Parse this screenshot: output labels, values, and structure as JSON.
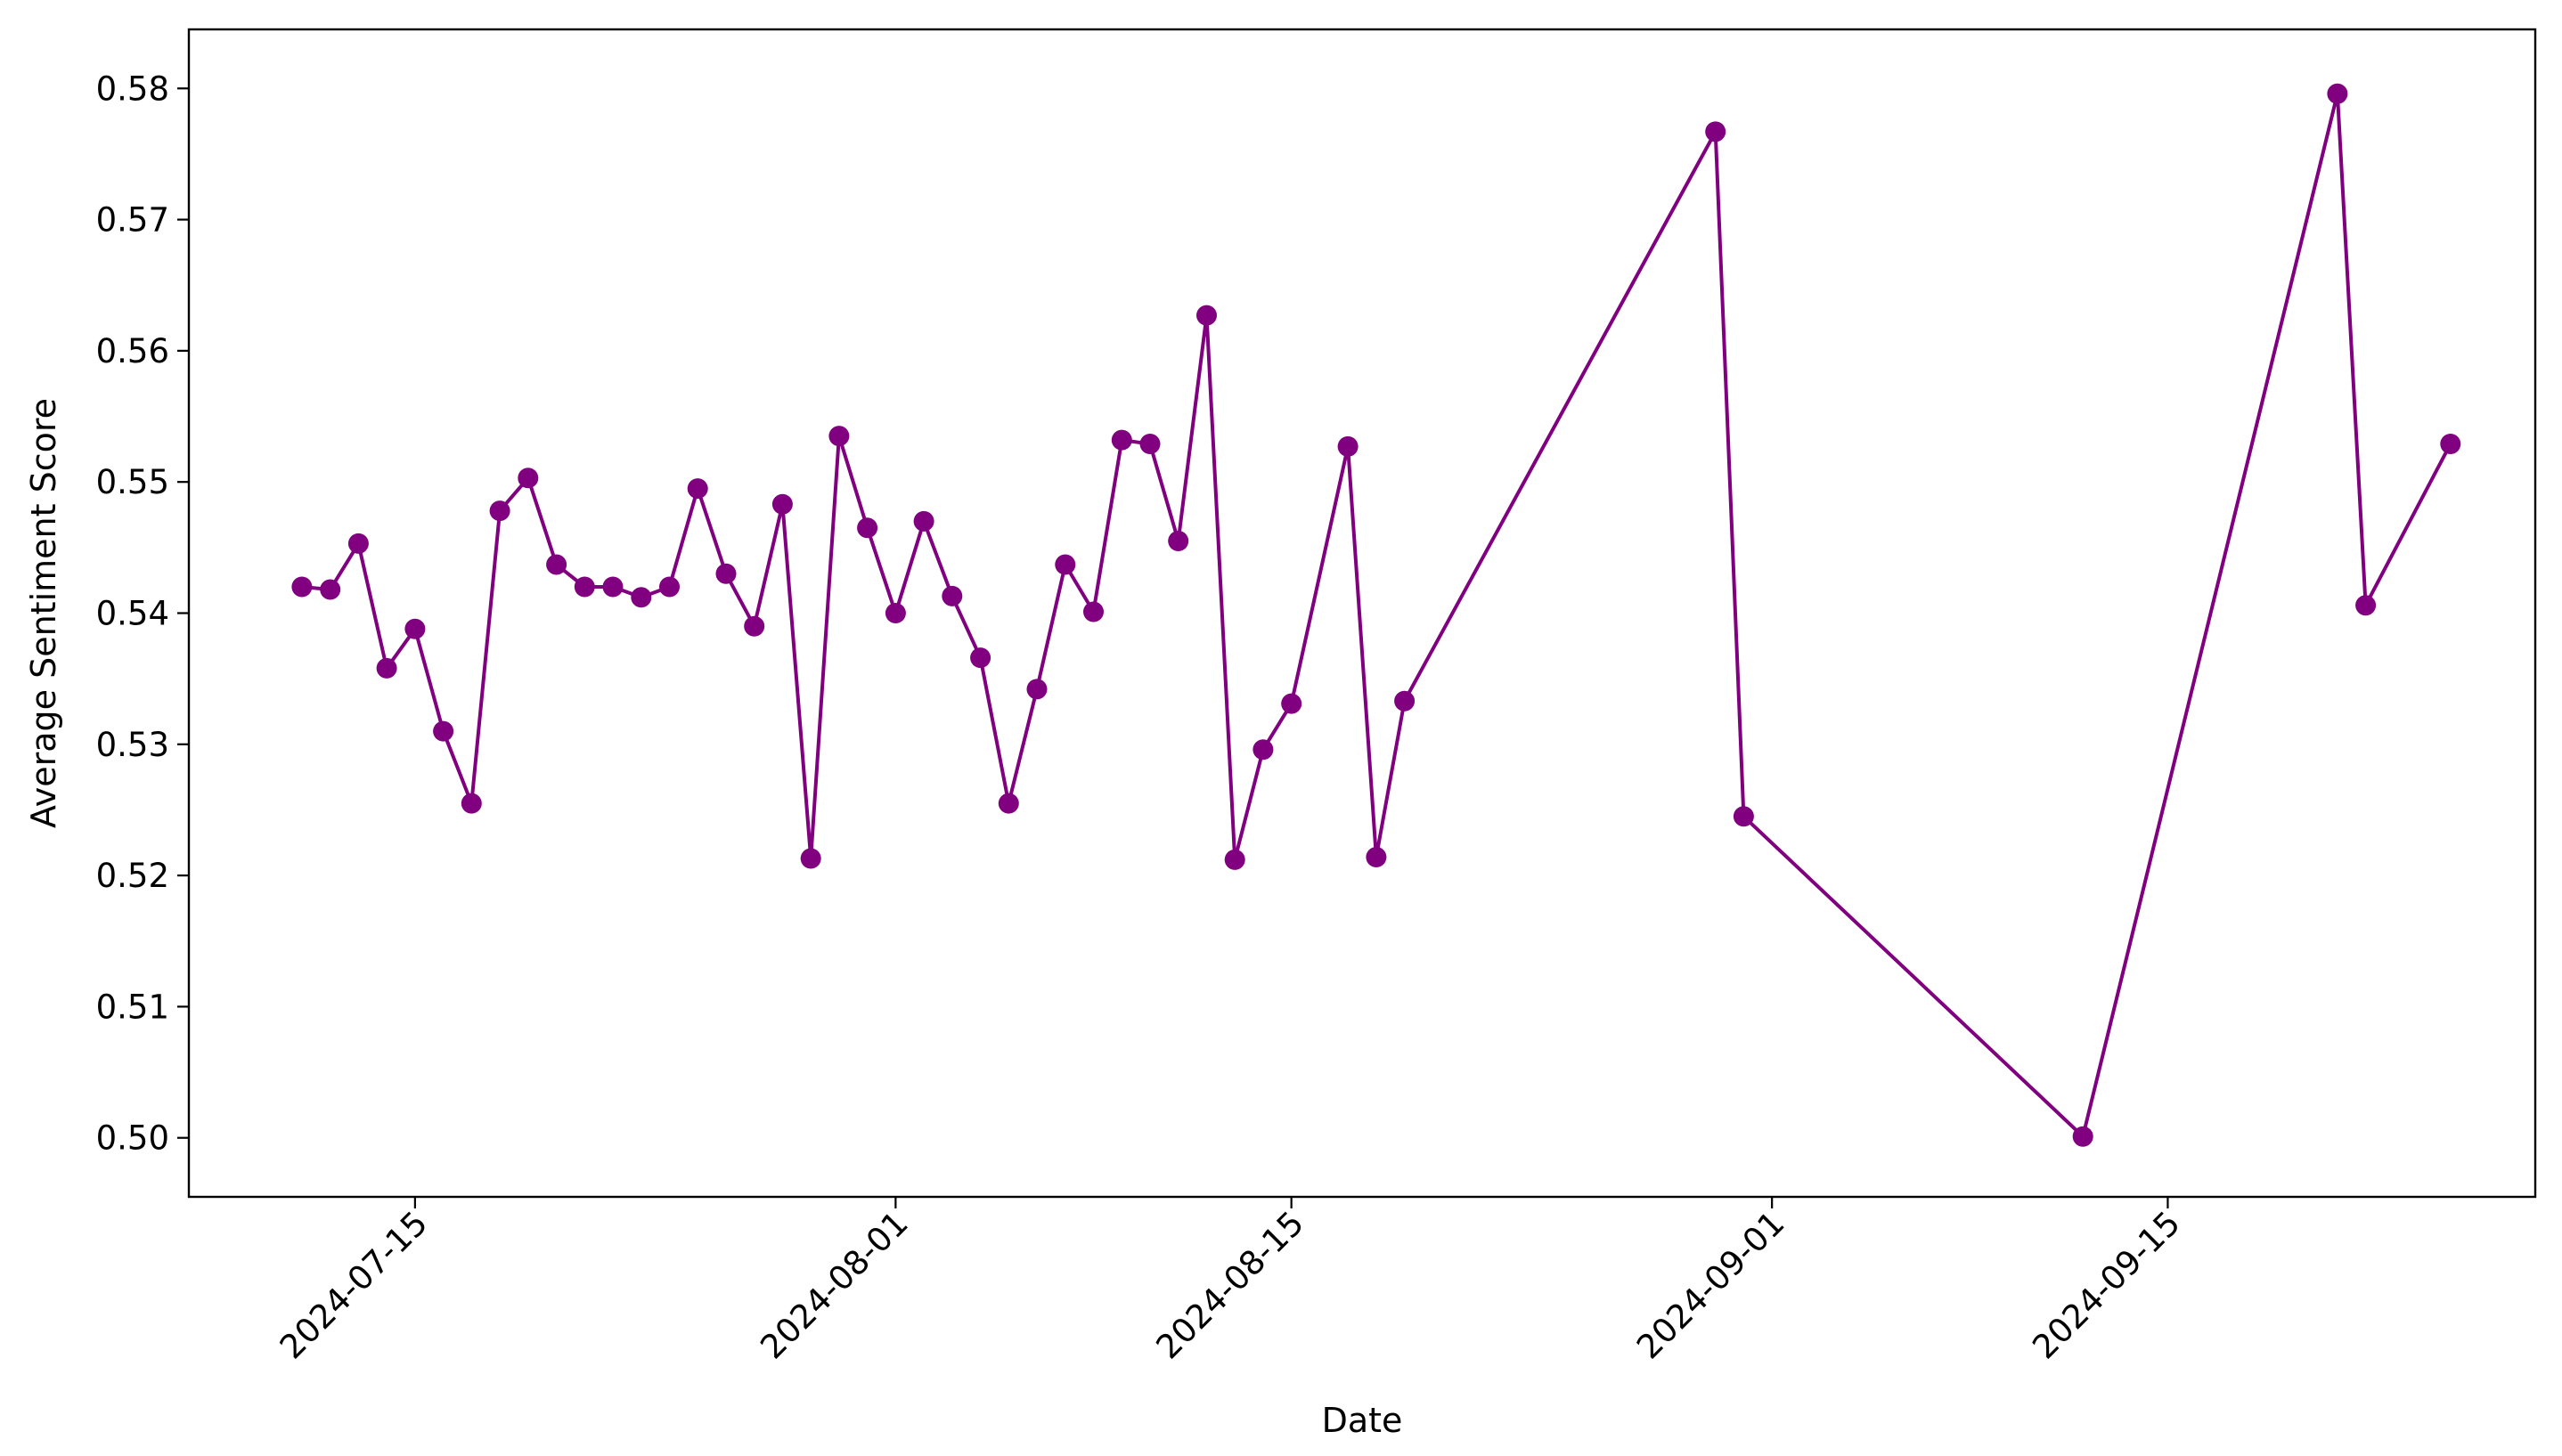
{
  "chart_data": {
    "type": "line",
    "title": "",
    "xlabel": "Date",
    "ylabel": "Average Sentiment Score",
    "xlim": [
      "2024-07-07",
      "2024-09-28"
    ],
    "ylim": [
      0.4955,
      0.5845
    ],
    "x_ticks": [
      "2024-07-15",
      "2024-08-01",
      "2024-08-15",
      "2024-09-01",
      "2024-09-15"
    ],
    "y_ticks": [
      "0.50",
      "0.51",
      "0.52",
      "0.53",
      "0.54",
      "0.55",
      "0.56",
      "0.57",
      "0.58"
    ],
    "grid": false,
    "legend": false,
    "series": [
      {
        "color": "#800080",
        "marker": "circle",
        "x": [
          "2024-07-11",
          "2024-07-12",
          "2024-07-13",
          "2024-07-14",
          "2024-07-15",
          "2024-07-16",
          "2024-07-17",
          "2024-07-18",
          "2024-07-19",
          "2024-07-20",
          "2024-07-21",
          "2024-07-22",
          "2024-07-23",
          "2024-07-24",
          "2024-07-25",
          "2024-07-26",
          "2024-07-27",
          "2024-07-28",
          "2024-07-29",
          "2024-07-30",
          "2024-07-31",
          "2024-08-01",
          "2024-08-02",
          "2024-08-03",
          "2024-08-04",
          "2024-08-05",
          "2024-08-06",
          "2024-08-07",
          "2024-08-08",
          "2024-08-09",
          "2024-08-10",
          "2024-08-11",
          "2024-08-12",
          "2024-08-13",
          "2024-08-14",
          "2024-08-15",
          "2024-08-17",
          "2024-08-18",
          "2024-08-19",
          "2024-08-30",
          "2024-08-31",
          "2024-09-12",
          "2024-09-21",
          "2024-09-22",
          "2024-09-25"
        ],
        "values": [
          0.542,
          0.5418,
          0.5453,
          0.5358,
          0.5388,
          0.531,
          0.5255,
          0.5478,
          0.5503,
          0.5437,
          0.542,
          0.542,
          0.5412,
          0.542,
          0.5495,
          0.543,
          0.539,
          0.5483,
          0.5213,
          0.5535,
          0.5465,
          0.54,
          0.547,
          0.5413,
          0.5366,
          0.5255,
          0.5342,
          0.5437,
          0.5401,
          0.5532,
          0.5529,
          0.5455,
          0.5627,
          0.5212,
          0.5296,
          0.5331,
          0.5527,
          0.5214,
          0.5333,
          0.5767,
          0.5245,
          0.5001,
          0.5796,
          0.5406,
          0.5529
        ]
      }
    ]
  }
}
